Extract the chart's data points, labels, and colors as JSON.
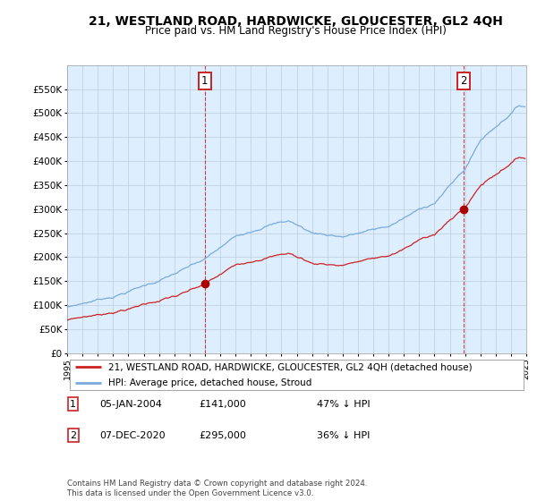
{
  "title": "21, WESTLAND ROAD, HARDWICKE, GLOUCESTER, GL2 4QH",
  "subtitle": "Price paid vs. HM Land Registry's House Price Index (HPI)",
  "legend_line1": "21, WESTLAND ROAD, HARDWICKE, GLOUCESTER, GL2 4QH (detached house)",
  "legend_line2": "HPI: Average price, detached house, Stroud",
  "annotation1_date": "05-JAN-2004",
  "annotation1_price": "£141,000",
  "annotation1_hpi": "47% ↓ HPI",
  "annotation2_date": "07-DEC-2020",
  "annotation2_price": "£295,000",
  "annotation2_hpi": "36% ↓ HPI",
  "footer": "Contains HM Land Registry data © Crown copyright and database right 2024.\nThis data is licensed under the Open Government Licence v3.0.",
  "hpi_color": "#7aaadd",
  "price_color": "#cc2222",
  "dot_color": "#aa0000",
  "plot_bg_color": "#ddeeff",
  "background_color": "#ffffff",
  "grid_color": "#bbccdd",
  "ylim": [
    0,
    600000
  ],
  "yticks": [
    0,
    50000,
    100000,
    150000,
    200000,
    250000,
    300000,
    350000,
    400000,
    450000,
    500000,
    550000
  ],
  "year_start": 1995,
  "year_end": 2025,
  "sale1_year": 2004,
  "sale1_month_idx": 0,
  "sale1_price": 141000,
  "sale2_year": 2020,
  "sale2_month_idx": 11,
  "sale2_price": 295000
}
